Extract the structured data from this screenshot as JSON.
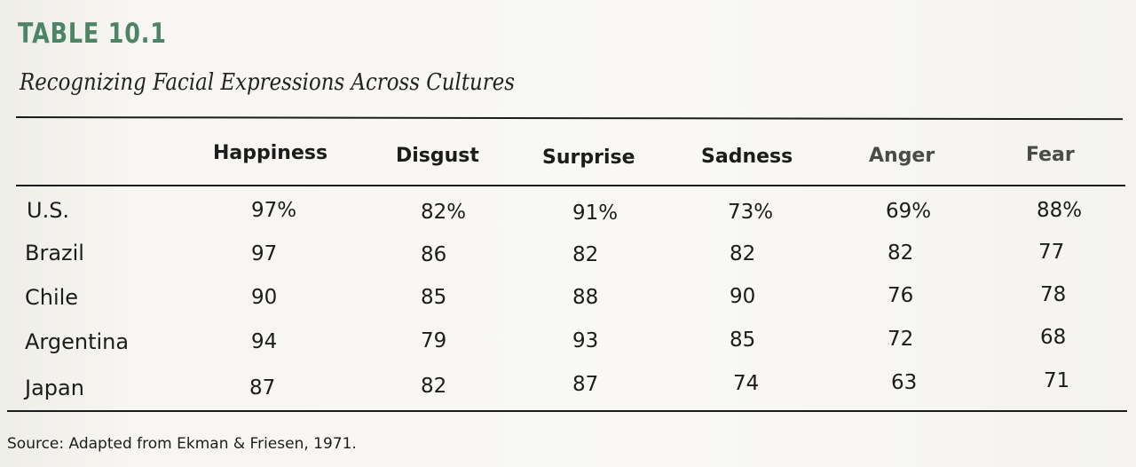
{
  "table": {
    "label": "TABLE 10.1",
    "caption": "Recognizing Facial Expressions Across Cultures",
    "columns": [
      "Happiness",
      "Disgust",
      "Surprise",
      "Sadness",
      "Anger",
      "Fear"
    ],
    "rows": [
      {
        "label": "U.S.",
        "values": [
          "97%",
          "82%",
          "91%",
          "73%",
          "69%",
          "88%"
        ]
      },
      {
        "label": "Brazil",
        "values": [
          "97",
          "86",
          "82",
          "82",
          "82",
          "77"
        ]
      },
      {
        "label": "Chile",
        "values": [
          "90",
          "85",
          "88",
          "90",
          "76",
          "78"
        ]
      },
      {
        "label": "Argentina",
        "values": [
          "94",
          "79",
          "93",
          "85",
          "72",
          "68"
        ]
      },
      {
        "label": "Japan",
        "values": [
          "87",
          "82",
          "87",
          "74",
          "63",
          "71"
        ]
      }
    ],
    "source": "Source: Adapted from Ekman & Friesen, 1971."
  },
  "colors": {
    "label_green": "#4d8466",
    "text": "#1c1c1c"
  }
}
